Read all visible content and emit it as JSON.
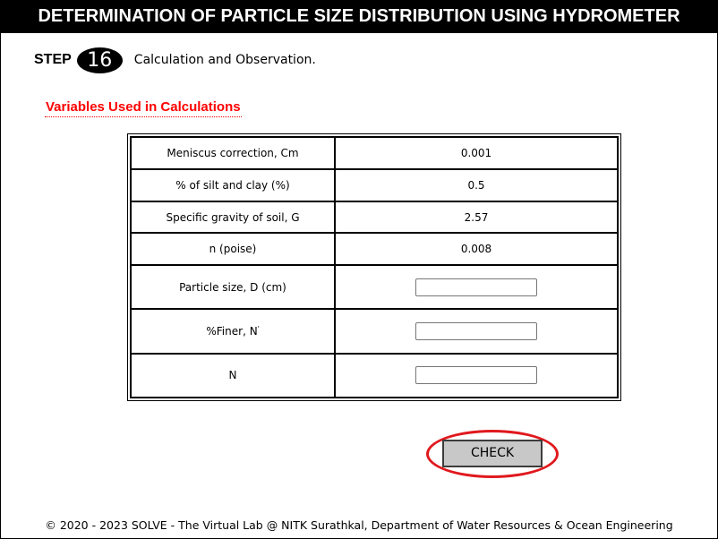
{
  "header": {
    "title": "DETERMINATION OF PARTICLE SIZE DISTRIBUTION USING HYDROMETER"
  },
  "step": {
    "label": "STEP",
    "number": "16",
    "description": "Calculation and Observation."
  },
  "variables": {
    "heading": "Variables Used in Calculations",
    "rows": [
      {
        "label": "Meniscus correction, Cm",
        "value": "0.001"
      },
      {
        "label": "% of silt and clay (%)",
        "value": "0.5"
      },
      {
        "label": "Specific gravity of soil, G",
        "value": "2.57"
      },
      {
        "label": "n (poise)",
        "value": "0.008"
      }
    ],
    "inputs": [
      {
        "label": "Particle size, D (cm)",
        "value": ""
      },
      {
        "label": "%Finer, N",
        "label_sup": "'",
        "value": ""
      },
      {
        "label": "N",
        "value": ""
      }
    ]
  },
  "actions": {
    "check_label": "CHECK",
    "highlight_color": "#e0191e"
  },
  "footer": {
    "text": "© 2020 - 2023 SOLVE - The Virtual Lab @ NITK Surathkal, Department of Water Resources & Ocean Engineering"
  },
  "colors": {
    "header_bg": "#000000",
    "heading_red": "#ff0000",
    "button_bg": "#c8c8c8"
  }
}
